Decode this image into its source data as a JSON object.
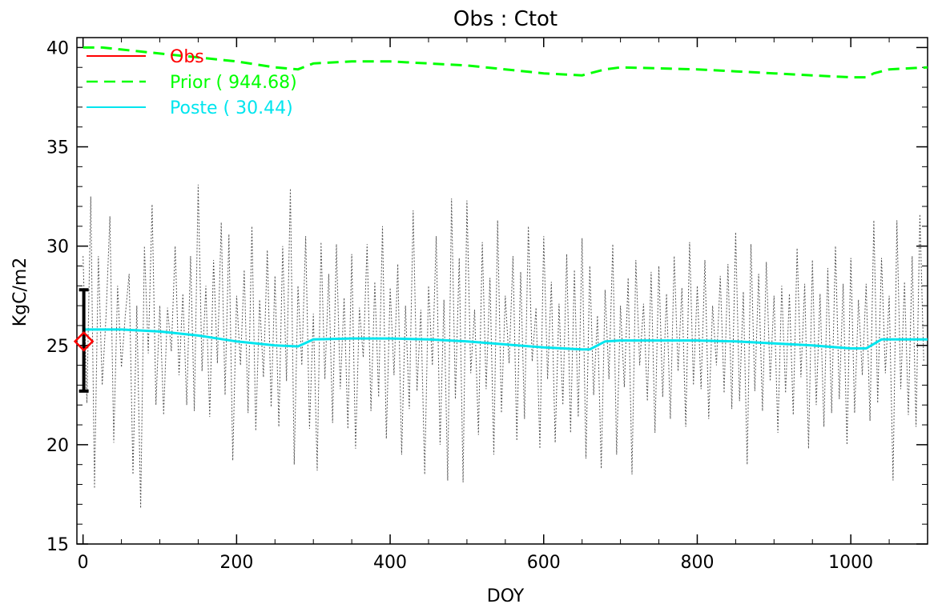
{
  "chart_data": {
    "type": "line",
    "title": "Obs : Ctot",
    "xlabel": "DOY",
    "ylabel": "KgC/m2",
    "xlim": [
      -8,
      1100
    ],
    "ylim": [
      15,
      40.5
    ],
    "x_ticks": [
      0,
      200,
      400,
      600,
      800,
      1000
    ],
    "y_ticks": [
      15,
      20,
      25,
      30,
      35,
      40
    ],
    "x_tick_labels": [
      "0",
      "200",
      "400",
      "600",
      "800",
      "1000"
    ],
    "y_tick_labels": [
      "15",
      "20",
      "25",
      "30",
      "35",
      "40"
    ],
    "grid": false,
    "legend_position": "top-left",
    "legend": [
      {
        "label": "Obs",
        "color": "#ff0000",
        "style": "solid"
      },
      {
        "label": "Prior ( 944.68)",
        "color": "#00ff00",
        "style": "dashed"
      },
      {
        "label": "Poste ( 30.44)",
        "color": "#00e5ee",
        "style": "solid"
      }
    ],
    "series": [
      {
        "name": "Obs",
        "color": "#ff0000",
        "x": [
          1
        ],
        "y": [
          25.2
        ],
        "error_low": [
          22.7
        ],
        "error_high": [
          27.8
        ]
      },
      {
        "name": "Prior ( 944.68)",
        "color": "#00ff00",
        "x": [
          0,
          25,
          50,
          100,
          150,
          200,
          250,
          280,
          300,
          350,
          400,
          450,
          500,
          550,
          600,
          650,
          660,
          680,
          700,
          800,
          850,
          900,
          950,
          1000,
          1020,
          1030,
          1050,
          1100
        ],
        "y": [
          40.0,
          40.0,
          39.9,
          39.7,
          39.5,
          39.3,
          39.0,
          38.9,
          39.2,
          39.3,
          39.3,
          39.2,
          39.1,
          38.9,
          38.7,
          38.6,
          38.7,
          38.9,
          39.0,
          38.9,
          38.8,
          38.7,
          38.6,
          38.5,
          38.5,
          38.7,
          38.9,
          39.0
        ]
      },
      {
        "name": "Poste ( 30.44)",
        "color": "#00e5ee",
        "x": [
          0,
          50,
          100,
          150,
          200,
          250,
          280,
          300,
          350,
          400,
          450,
          500,
          550,
          600,
          650,
          660,
          680,
          700,
          800,
          850,
          900,
          950,
          1000,
          1020,
          1040,
          1100
        ],
        "y": [
          25.8,
          25.8,
          25.7,
          25.5,
          25.2,
          25.0,
          24.95,
          25.3,
          25.35,
          25.35,
          25.3,
          25.2,
          25.05,
          24.9,
          24.8,
          24.8,
          25.2,
          25.25,
          25.25,
          25.2,
          25.1,
          25.0,
          24.85,
          24.85,
          25.3,
          25.3
        ]
      },
      {
        "name": "",
        "color": "#555555",
        "style": "dotted",
        "x": [
          0,
          5,
          10,
          15,
          20,
          25,
          30,
          35,
          40,
          45,
          50,
          55,
          60,
          65,
          70,
          75,
          80,
          85,
          90,
          95,
          100,
          105,
          110,
          115,
          120,
          125,
          130,
          135,
          140,
          145,
          150,
          155,
          160,
          165,
          170,
          175,
          180,
          185,
          190,
          195,
          200,
          205,
          210,
          215,
          220,
          225,
          230,
          235,
          240,
          245,
          250,
          255,
          260,
          265,
          270,
          275,
          280,
          285,
          290,
          295,
          300,
          305,
          310,
          315,
          320,
          325,
          330,
          335,
          340,
          345,
          350,
          355,
          360,
          365,
          370,
          375,
          380,
          385,
          390,
          395,
          400,
          405,
          410,
          415,
          420,
          425,
          430,
          435,
          440,
          445,
          450,
          455,
          460,
          465,
          470,
          475,
          480,
          485,
          490,
          495,
          500,
          505,
          510,
          515,
          520,
          525,
          530,
          535,
          540,
          545,
          550,
          555,
          560,
          565,
          570,
          575,
          580,
          585,
          590,
          595,
          600,
          605,
          610,
          615,
          620,
          625,
          630,
          635,
          640,
          645,
          650,
          655,
          660,
          665,
          670,
          675,
          680,
          685,
          690,
          695,
          700,
          705,
          710,
          715,
          720,
          725,
          730,
          735,
          740,
          745,
          750,
          755,
          760,
          765,
          770,
          775,
          780,
          785,
          790,
          795,
          800,
          805,
          810,
          815,
          820,
          825,
          830,
          835,
          840,
          845,
          850,
          855,
          860,
          865,
          870,
          875,
          880,
          885,
          890,
          895,
          900,
          905,
          910,
          915,
          920,
          925,
          930,
          935,
          940,
          945,
          950,
          955,
          960,
          965,
          970,
          975,
          980,
          985,
          990,
          995,
          1000,
          1005,
          1010,
          1015,
          1020,
          1025,
          1030,
          1035,
          1040,
          1045,
          1050,
          1055,
          1060,
          1065,
          1070,
          1075,
          1080,
          1085,
          1090,
          1095
        ],
        "y": [
          29.5,
          22.1,
          32.5,
          17.8,
          29.5,
          23.0,
          26.5,
          31.5,
          20.1,
          28.0,
          23.9,
          26.5,
          28.6,
          18.5,
          27.0,
          16.8,
          30.0,
          24.6,
          32.1,
          22.0,
          27.0,
          21.5,
          26.9,
          24.7,
          30.0,
          23.5,
          27.6,
          22.0,
          29.5,
          21.7,
          33.1,
          23.7,
          28.0,
          21.4,
          29.3,
          24.1,
          31.2,
          22.5,
          30.6,
          19.2,
          27.5,
          24.0,
          28.8,
          21.6,
          31.0,
          20.7,
          27.3,
          23.4,
          29.8,
          21.9,
          28.5,
          20.9,
          30.0,
          23.2,
          32.9,
          19.0,
          28.0,
          24.0,
          30.5,
          20.8,
          26.6,
          18.7,
          30.2,
          23.3,
          28.6,
          21.1,
          30.1,
          22.8,
          27.4,
          20.8,
          29.6,
          19.8,
          26.9,
          24.4,
          30.1,
          21.7,
          28.2,
          22.4,
          31.0,
          20.3,
          27.9,
          23.5,
          29.1,
          19.5,
          27.0,
          21.8,
          31.8,
          22.7,
          26.8,
          18.5,
          28.0,
          24.0,
          30.5,
          20.0,
          27.3,
          18.2,
          32.4,
          22.3,
          29.4,
          18.1,
          32.3,
          23.6,
          26.8,
          20.5,
          30.2,
          22.8,
          28.4,
          19.5,
          31.3,
          21.6,
          27.5,
          24.1,
          29.5,
          20.2,
          28.7,
          21.3,
          31.0,
          24.2,
          26.9,
          19.8,
          30.5,
          23.3,
          28.2,
          20.1,
          27.1,
          22.0,
          29.6,
          20.6,
          28.8,
          21.4,
          30.4,
          19.3,
          29.0,
          22.5,
          26.5,
          18.8,
          27.8,
          23.3,
          30.1,
          19.5,
          27.0,
          22.9,
          28.4,
          18.5,
          29.3,
          24.0,
          27.1,
          22.2,
          28.7,
          20.6,
          29.0,
          22.4,
          27.6,
          21.3,
          29.5,
          23.7,
          27.9,
          20.9,
          30.2,
          23.0,
          28.0,
          22.8,
          29.3,
          21.3,
          27.0,
          24.0,
          28.5,
          22.6,
          29.1,
          21.8,
          30.7,
          22.2,
          27.7,
          19.0,
          30.1,
          22.7,
          28.6,
          21.7,
          29.2,
          23.2,
          27.5,
          20.6,
          28.0,
          22.6,
          27.6,
          21.5,
          29.9,
          23.4,
          28.1,
          19.8,
          29.3,
          22.0,
          27.6,
          20.9,
          28.9,
          21.6,
          30.0,
          22.3,
          28.1,
          20.0,
          29.4,
          21.6,
          27.3,
          23.5,
          28.1,
          21.2,
          31.3,
          22.1,
          29.4,
          23.6,
          27.5,
          18.2,
          31.3,
          22.8,
          28.2,
          21.5,
          29.5,
          20.9,
          31.6,
          24.2
        ]
      }
    ]
  },
  "colors": {
    "obs": "#ff0000",
    "prior": "#00ff00",
    "poste": "#00e5ee",
    "noise": "#555555",
    "errorbar": "#000000"
  }
}
